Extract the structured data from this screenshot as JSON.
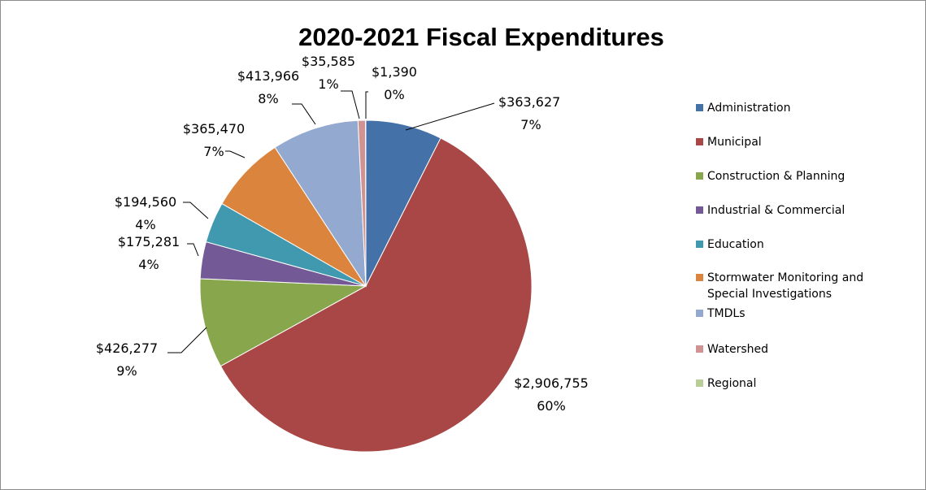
{
  "chart_data": {
    "type": "pie",
    "title": "2020-2021 Fiscal Expenditures",
    "start_angle_deg": 0,
    "direction": "clockwise",
    "legend_position": "right",
    "slices": [
      {
        "name": "Administration",
        "value": 363627,
        "value_label": "$363,627",
        "percent_label": "7%",
        "color": "#4472A8"
      },
      {
        "name": "Municipal",
        "value": 2906755,
        "value_label": "$2,906,755",
        "percent_label": "60%",
        "color": "#A84745"
      },
      {
        "name": "Construction & Planning",
        "value": 426277,
        "value_label": "$426,277",
        "percent_label": "9%",
        "color": "#88A64C"
      },
      {
        "name": "Industrial & Commercial",
        "value": 175281,
        "value_label": "$175,281",
        "percent_label": "4%",
        "color": "#735A96"
      },
      {
        "name": "Education",
        "value": 194560,
        "value_label": "$194,560",
        "percent_label": "4%",
        "color": "#4199AF"
      },
      {
        "name": "Stormwater Monitoring and Special Investigations",
        "value": 365470,
        "value_label": "$365,470",
        "percent_label": "7%",
        "color": "#DB843D",
        "legend_lines": [
          "Stormwater Monitoring and",
          "Special Investigations"
        ]
      },
      {
        "name": "TMDLs",
        "value": 413966,
        "value_label": "$413,966",
        "percent_label": "8%",
        "color": "#93A9CF"
      },
      {
        "name": "Watershed",
        "value": 35585,
        "value_label": "$35,585",
        "percent_label": "1%",
        "color": "#D19392"
      },
      {
        "name": "Regional",
        "value": 1390,
        "value_label": "$1,390",
        "percent_label": "0%",
        "color": "#B9CD96"
      }
    ]
  }
}
